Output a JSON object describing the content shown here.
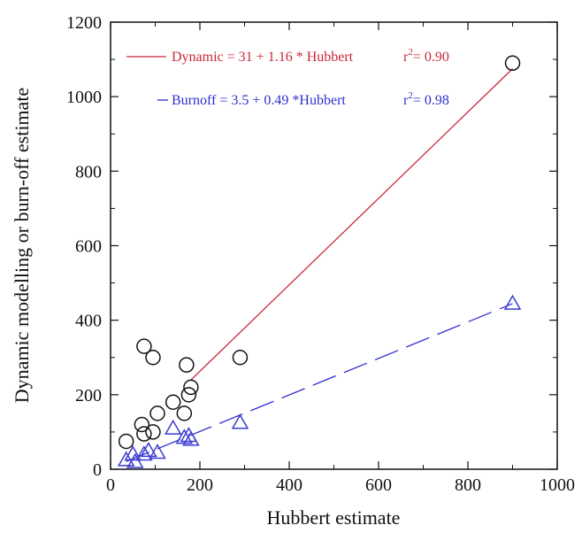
{
  "chart_data": {
    "type": "scatter",
    "xlabel": "Hubbert estimate",
    "ylabel": "Dynamic modelling or burn-off estimate",
    "xlim": [
      0,
      1000
    ],
    "ylim": [
      0,
      1200
    ],
    "xticks": [
      0,
      200,
      400,
      600,
      800,
      1000
    ],
    "yticks": [
      0,
      200,
      400,
      600,
      800,
      1000,
      1200
    ],
    "grid": false,
    "legend_position": "top-left",
    "series": [
      {
        "marker": "circle",
        "color": "#111111",
        "points": [
          [
            35,
            75
          ],
          [
            70,
            120
          ],
          [
            75,
            95
          ],
          [
            75,
            330
          ],
          [
            95,
            300
          ],
          [
            95,
            100
          ],
          [
            105,
            150
          ],
          [
            140,
            180
          ],
          [
            165,
            150
          ],
          [
            170,
            280
          ],
          [
            175,
            200
          ],
          [
            180,
            220
          ],
          [
            290,
            300
          ],
          [
            900,
            1090
          ]
        ]
      },
      {
        "marker": "triangle",
        "color": "#3b3bd0",
        "points": [
          [
            35,
            25
          ],
          [
            50,
            40
          ],
          [
            55,
            20
          ],
          [
            75,
            40
          ],
          [
            85,
            50
          ],
          [
            105,
            45
          ],
          [
            140,
            110
          ],
          [
            165,
            85
          ],
          [
            175,
            90
          ],
          [
            180,
            80
          ],
          [
            290,
            125
          ],
          [
            900,
            445
          ]
        ]
      }
    ],
    "fits": [
      {
        "label": "Dynamic = 31 + 1.16 * Hubbert",
        "r2_label": "= 0.90",
        "intercept": 31,
        "slope": 1.16,
        "x_range": [
          180,
          900
        ],
        "color": "#c8283a",
        "dash": "solid"
      },
      {
        "label": "Burnoff = 3.5 + 0.49 *Hubbert",
        "r2_label": "= 0.98",
        "intercept": 3.5,
        "slope": 0.49,
        "x_range": [
          35,
          900
        ],
        "color": "#2f2fd0",
        "dash": "dashed"
      }
    ]
  }
}
